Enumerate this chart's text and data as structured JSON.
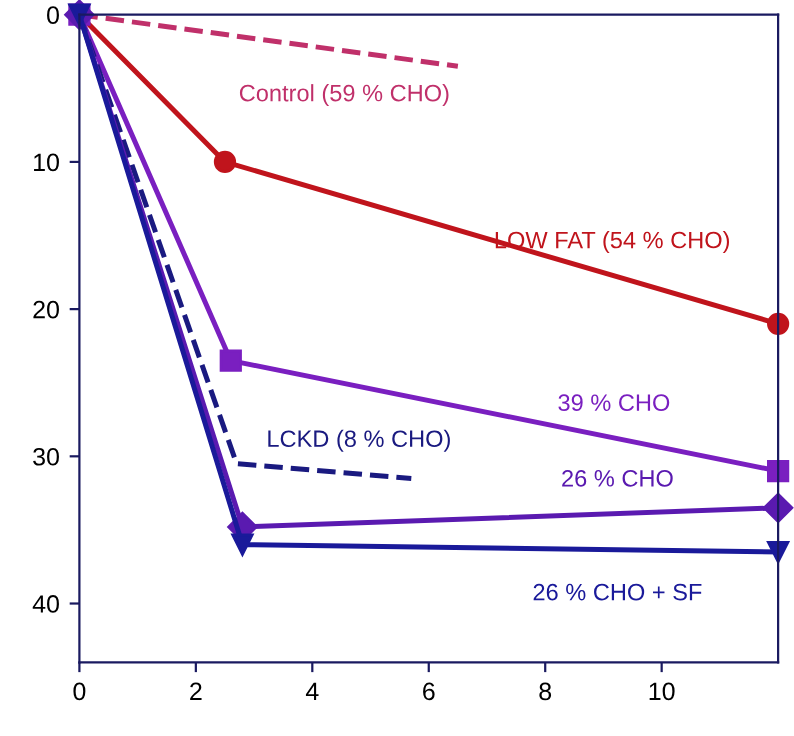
{
  "chart_data": {
    "type": "line",
    "xlim": [
      0,
      12
    ],
    "ylim": [
      44,
      0
    ],
    "xticks": [
      0,
      2,
      4,
      6,
      8,
      10
    ],
    "yticks": [
      0,
      10,
      20,
      30,
      40
    ],
    "grid": false,
    "legend": false,
    "series": [
      {
        "name": "Control (59 % CHO)",
        "color": "#c0306a",
        "x": [
          0,
          6.5
        ],
        "values": [
          0,
          3.5
        ],
        "marker": "none",
        "line_style": "dashed"
      },
      {
        "name": "LOW FAT (54 % CHO)",
        "color": "#c0141c",
        "x": [
          0,
          2.5,
          12
        ],
        "values": [
          0,
          10,
          21
        ],
        "marker": "circle",
        "line_style": "solid"
      },
      {
        "name": "39 % CHO",
        "color": "#7a1fc0",
        "x": [
          0,
          2.6,
          12
        ],
        "values": [
          0,
          23.5,
          31
        ],
        "marker": "square",
        "line_style": "solid"
      },
      {
        "name": "LCKD (8 % CHO)",
        "color": "#1a1a80",
        "x": [
          0,
          2.7,
          5.7
        ],
        "values": [
          0,
          30.5,
          31.5
        ],
        "marker": "none",
        "line_style": "dashed"
      },
      {
        "name": "26 % CHO",
        "color": "#5a1ab0",
        "x": [
          0,
          2.8,
          12
        ],
        "values": [
          0,
          34.8,
          33.5
        ],
        "marker": "diamond",
        "line_style": "solid"
      },
      {
        "name": "26 % CHO + SF",
        "color": "#1a1a9a",
        "x": [
          0,
          2.8,
          12
        ],
        "values": [
          0,
          36,
          36.5
        ],
        "marker": "triangle",
        "line_style": "solid"
      }
    ]
  }
}
